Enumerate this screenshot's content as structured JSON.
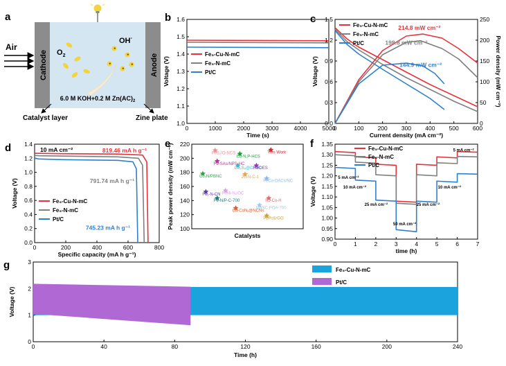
{
  "colors": {
    "fe5cu": "#e8313a",
    "fe5": "#7f7f7f",
    "ptc": "#2f7fd0",
    "fe5cu_g": "#1aa3dc",
    "ptc_g": "#b069d4"
  },
  "panel_a": {
    "letter": "a",
    "air": "Air",
    "cathode": "Cathode",
    "anode": "Anode",
    "o2": "O",
    "o2_sub": "2",
    "oh": "OH",
    "oh_sup": "-",
    "electrolyte": "6.0 M KOH+0.2 M Zn(AC)",
    "electrolyte_sub": "2",
    "catalyst_layer": "Catalyst layer",
    "zinc_plate": "Zine plate",
    "icons": [
      "bulb-icon",
      "arrow-icon"
    ]
  },
  "chart_data": [
    {
      "id": "b",
      "type": "line",
      "letter": "b",
      "xlabel": "Time (s)",
      "ylabel": "Voltage (V)",
      "xlim": [
        0,
        5000
      ],
      "ylim": [
        1.0,
        1.6
      ],
      "xticks": [
        "0",
        "1000",
        "2000",
        "3000",
        "4000",
        "5000"
      ],
      "yticks": [
        "1.0",
        "1.1",
        "1.2",
        "1.3",
        "1.4",
        "1.5",
        "1.6"
      ],
      "legend_loc": "center-left",
      "series": [
        {
          "name": "Fe₅-Cu-N-mC",
          "color": "#e8313a",
          "x": [
            0,
            5000
          ],
          "y": [
            1.48,
            1.477
          ]
        },
        {
          "name": "Fe₅-N-mC",
          "color": "#7f7f7f",
          "x": [
            0,
            5000
          ],
          "y": [
            1.468,
            1.465
          ]
        },
        {
          "name": "Pt/C",
          "color": "#2f7fd0",
          "x": [
            0,
            5000
          ],
          "y": [
            1.44,
            1.437
          ]
        }
      ]
    },
    {
      "id": "c",
      "type": "line",
      "letter": "c",
      "xlabel": "Current density (mA cm⁻²)",
      "ylabel": "Voltage (V)",
      "y2label": "Power density (mW cm⁻²)",
      "xlim": [
        0,
        600
      ],
      "ylim": [
        0,
        1.5
      ],
      "y2lim": [
        0,
        250
      ],
      "xticks": [
        "0",
        "100",
        "200",
        "300",
        "400",
        "500",
        "600"
      ],
      "yticks": [
        "0.0",
        "0.3",
        "0.6",
        "0.9",
        "1.2",
        "1.5"
      ],
      "y2ticks": [
        "0",
        "50",
        "100",
        "150",
        "200",
        "250"
      ],
      "legend_loc": "top-left",
      "annotations": [
        {
          "text": "214.8 mW cm⁻²",
          "color": "#e8313a",
          "x": 355,
          "y2": 225
        },
        {
          "text": "198.8 mW cm⁻²",
          "color": "#7f7f7f",
          "x": 300,
          "y2": 189
        },
        {
          "text": "144.9 mW cm⁻²",
          "color": "#2f7fd0",
          "x": 360,
          "y2": 136
        }
      ],
      "series": [
        {
          "name": "Fe₅-Cu-N-mC",
          "color": "#e8313a",
          "axis": "left",
          "x": [
            0,
            50,
            100,
            200,
            300,
            400,
            500,
            600
          ],
          "y": [
            1.38,
            1.22,
            1.1,
            0.92,
            0.74,
            0.56,
            0.4,
            0.24
          ]
        },
        {
          "name": "Fe₅-N-mC",
          "color": "#7f7f7f",
          "axis": "left",
          "x": [
            0,
            50,
            100,
            200,
            300,
            400,
            500,
            600
          ],
          "y": [
            1.36,
            1.18,
            1.06,
            0.85,
            0.66,
            0.49,
            0.32,
            0.17
          ]
        },
        {
          "name": "Pt/C",
          "color": "#2f7fd0",
          "axis": "left",
          "x": [
            0,
            50,
            100,
            200,
            300,
            400,
            460
          ],
          "y": [
            1.34,
            1.14,
            1.0,
            0.78,
            0.57,
            0.36,
            0.2
          ]
        },
        {
          "name": "Fe₅-Cu-N-mC",
          "color": "#e8313a",
          "axis": "right",
          "x": [
            0,
            100,
            200,
            300,
            370,
            450,
            520,
            600
          ],
          "y": [
            0,
            105,
            175,
            210,
            214.8,
            205,
            180,
            145
          ]
        },
        {
          "name": "Fe₅-N-mC",
          "color": "#7f7f7f",
          "axis": "right",
          "x": [
            0,
            100,
            200,
            300,
            360,
            450,
            520,
            600
          ],
          "y": [
            0,
            100,
            165,
            195,
            198.8,
            180,
            155,
            110
          ]
        },
        {
          "name": "Pt/C",
          "color": "#2f7fd0",
          "axis": "right",
          "x": [
            0,
            100,
            200,
            300,
            370,
            420,
            460
          ],
          "y": [
            0,
            95,
            140,
            144.9,
            138,
            120,
            95
          ]
        }
      ]
    },
    {
      "id": "d",
      "type": "line",
      "letter": "d",
      "xlabel": "Specific capacity (mA h g⁻¹)",
      "ylabel": "Voltage (V)",
      "xlim": [
        0,
        900
      ],
      "ylim": [
        0,
        1.4
      ],
      "xticks": [
        "0",
        "200",
        "400",
        "600",
        "800"
      ],
      "yticks": [
        "0.0",
        "0.2",
        "0.4",
        "0.6",
        "0.8",
        "1.0",
        "1.2",
        "1.4"
      ],
      "legend_loc": "bottom-left",
      "condition": "10 mA cm⁻²",
      "annotations": [
        {
          "text": "819.46 mA h g⁻¹",
          "color": "#e8313a",
          "x": 650,
          "y": 1.28
        },
        {
          "text": "791.74 mA h g⁻¹",
          "color": "#7f7f7f",
          "x": 560,
          "y": 0.85
        },
        {
          "text": "745.23 mA h g⁻¹",
          "color": "#2f7fd0",
          "x": 530,
          "y": 0.18
        }
      ],
      "series": [
        {
          "name": "Fe₅-Cu-N-mC",
          "color": "#e8313a",
          "x": [
            0,
            30,
            200,
            600,
            780,
            810,
            819.46
          ],
          "y": [
            1.27,
            1.27,
            1.265,
            1.26,
            1.245,
            1.15,
            0.0
          ]
        },
        {
          "name": "Fe₅-N-mC",
          "color": "#7f7f7f",
          "x": [
            0,
            30,
            200,
            600,
            750,
            780,
            791.74
          ],
          "y": [
            1.24,
            1.235,
            1.23,
            1.22,
            1.2,
            1.1,
            0.0
          ]
        },
        {
          "name": "Pt/C",
          "color": "#2f7fd0",
          "x": [
            0,
            30,
            200,
            600,
            710,
            735,
            745.23
          ],
          "y": [
            1.2,
            1.19,
            1.18,
            1.17,
            1.15,
            1.05,
            0.0
          ]
        }
      ]
    },
    {
      "id": "e",
      "type": "scatter",
      "letter": "e",
      "xlabel": "Catalysts",
      "ylabel": "Peak power density (mW cm⁻²)",
      "ylim": [
        80,
        225
      ],
      "yticks": [
        "100",
        "120",
        "140",
        "160",
        "180",
        "200",
        "220"
      ],
      "points": [
        {
          "label": "FeS₂/O-NCS",
          "x": 0.18,
          "y": 214,
          "color": "#e9919b"
        },
        {
          "label": "Co-N,P-HCS",
          "x": 0.42,
          "y": 208,
          "color": "#1a9b3a"
        },
        {
          "label": "This Work",
          "x": 0.72,
          "y": 214.8,
          "color": "#d9262e"
        },
        {
          "label": "Fe-SAs/NPS-HC",
          "x": 0.2,
          "y": 195.5,
          "color": "#c0309e"
        },
        {
          "label": "Co₉S₈@CoNC",
          "x": 0.4,
          "y": 188,
          "color": "#30b9d9"
        },
        {
          "label": "Fe/OES",
          "x": 0.58,
          "y": 188,
          "color": "#9a33b6"
        },
        {
          "label": "Co₂N/PBNC",
          "x": 0.06,
          "y": 174,
          "color": "#31a547"
        },
        {
          "label": "Zn-N-C-1",
          "x": 0.47,
          "y": 173,
          "color": "#e8a54a"
        },
        {
          "label": "FeCo-DACs/NC",
          "x": 0.68,
          "y": 166,
          "color": "#8fb7e6"
        },
        {
          "label": "Fe₁-N-CN",
          "x": 0.09,
          "y": 143,
          "color": "#6237a8"
        },
        {
          "label": "FeNi-Nₓ/OC",
          "x": 0.28,
          "y": 145,
          "color": "#d9a3e0"
        },
        {
          "label": "Fe-N/P-C-700",
          "x": 0.2,
          "y": 132,
          "color": "#1a7a7a"
        },
        {
          "label": "RJ-Co-H",
          "x": 0.7,
          "y": 132,
          "color": "#e26a6a"
        },
        {
          "label": "MoNC-POA-700",
          "x": 0.61,
          "y": 120,
          "color": "#9ecbe8"
        },
        {
          "label": "Cu-CoNₓ@NCNs",
          "x": 0.38,
          "y": 115,
          "color": "#e05a2a"
        },
        {
          "label": "FePc&rGO",
          "x": 0.68,
          "y": 102,
          "color": "#c8a040"
        }
      ]
    },
    {
      "id": "f",
      "type": "line",
      "letter": "f",
      "xlabel": "time (h)",
      "ylabel": "Voltage (V)",
      "xlim": [
        0,
        7
      ],
      "ylim": [
        0.9,
        1.35
      ],
      "xticks": [
        "0",
        "1",
        "2",
        "3",
        "4",
        "5",
        "6",
        "7"
      ],
      "yticks": [
        "0.90",
        "0.95",
        "1.00",
        "1.05",
        "1.10",
        "1.15",
        "1.20",
        "1.25",
        "1.30",
        "1.35"
      ],
      "legend_loc": "top-left",
      "labels": [
        {
          "text": "5 mA cm⁻²",
          "x": 0.15,
          "y": 1.185
        },
        {
          "text": "10 mA cm⁻²",
          "x": 0.4,
          "y": 1.14
        },
        {
          "text": "25 mA cm⁻²",
          "x": 1.45,
          "y": 1.058
        },
        {
          "text": "50 mA cm⁻²",
          "x": 2.85,
          "y": 0.965
        },
        {
          "text": "25 mA cm⁻²",
          "x": 4.0,
          "y": 1.058
        },
        {
          "text": "10 mA cm⁻²",
          "x": 5.05,
          "y": 1.14
        },
        {
          "text": "5 mA cm⁻²",
          "x": 5.8,
          "y": 1.315
        }
      ],
      "series": [
        {
          "name": "Fe₅-Cu-N-mC",
          "color": "#e8313a",
          "x": [
            0,
            1,
            1,
            2,
            2,
            3,
            3,
            4,
            4,
            5,
            5,
            6,
            6,
            7
          ],
          "y": [
            1.315,
            1.31,
            1.29,
            1.285,
            1.255,
            1.25,
            1.08,
            1.075,
            1.255,
            1.25,
            1.29,
            1.285,
            1.315,
            1.312
          ]
        },
        {
          "name": "Fe₅-N-mC",
          "color": "#7f7f7f",
          "x": [
            0,
            1,
            1,
            2,
            2,
            3,
            3,
            4,
            4,
            5,
            5,
            6,
            6,
            7
          ],
          "y": [
            1.3,
            1.295,
            1.265,
            1.26,
            1.205,
            1.2,
            1.07,
            1.065,
            1.205,
            1.2,
            1.262,
            1.258,
            1.292,
            1.29
          ]
        },
        {
          "name": "Pt/C",
          "color": "#2f7fd0",
          "x": [
            0,
            1,
            1,
            2,
            2,
            3,
            3,
            4,
            4,
            5,
            5,
            6,
            6,
            7
          ],
          "y": [
            1.24,
            1.235,
            1.18,
            1.175,
            1.085,
            1.08,
            0.945,
            0.935,
            1.08,
            1.075,
            1.175,
            1.17,
            1.21,
            1.208
          ]
        }
      ]
    },
    {
      "id": "g",
      "type": "area",
      "letter": "g",
      "xlabel": "Time (h)",
      "ylabel": "Voltage (V)",
      "xlim": [
        0,
        240
      ],
      "ylim": [
        0,
        3
      ],
      "xticks": [
        "0",
        "40",
        "80",
        "120",
        "160",
        "200",
        "240"
      ],
      "yticks": [
        "0",
        "1",
        "2",
        "3"
      ],
      "legend_loc": "top-right",
      "series": [
        {
          "name": "Fe₅-Cu-N-mC",
          "color": "#1aa3dc",
          "x_range": [
            0,
            240
          ],
          "upper": [
            2.06,
            2.06
          ],
          "lower": [
            1.0,
            1.0
          ]
        },
        {
          "name": "Pt/C",
          "color": "#b069d4",
          "x_range": [
            0,
            89
          ],
          "upper": [
            2.18,
            2.07
          ],
          "lower": [
            1.05,
            0.62
          ]
        }
      ]
    }
  ]
}
